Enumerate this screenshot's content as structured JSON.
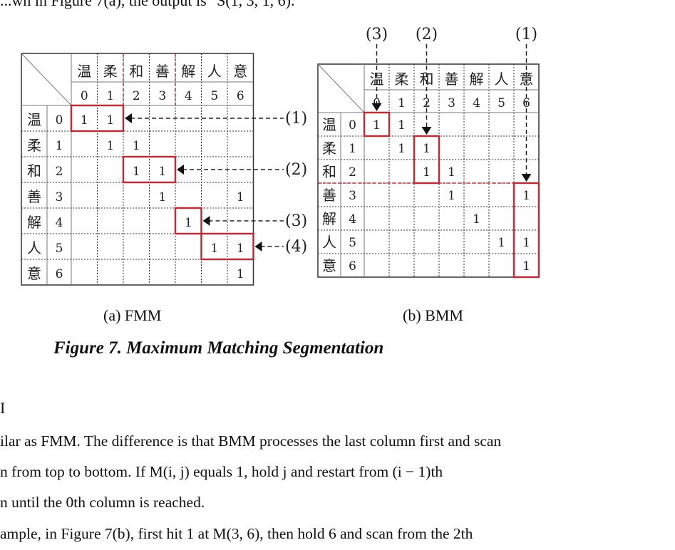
{
  "top_line": "...wn in Figure 7(a), the output is \"S(1, 3, 1, 6).\"",
  "fmm": {
    "caption": "(a) FMM",
    "chars": [
      "温",
      "柔",
      "和",
      "善",
      "解",
      "人",
      "意"
    ],
    "indices": [
      "0",
      "1",
      "2",
      "3",
      "4",
      "5",
      "6"
    ],
    "cells": [
      {
        "r": 0,
        "c": 0,
        "v": "1"
      },
      {
        "r": 0,
        "c": 1,
        "v": "1"
      },
      {
        "r": 1,
        "c": 1,
        "v": "1"
      },
      {
        "r": 1,
        "c": 2,
        "v": "1"
      },
      {
        "r": 2,
        "c": 2,
        "v": "1"
      },
      {
        "r": 2,
        "c": 3,
        "v": "1"
      },
      {
        "r": 3,
        "c": 3,
        "v": "1"
      },
      {
        "r": 3,
        "c": 6,
        "v": "1"
      },
      {
        "r": 4,
        "c": 4,
        "v": "1"
      },
      {
        "r": 5,
        "c": 5,
        "v": "1"
      },
      {
        "r": 5,
        "c": 6,
        "v": "1"
      },
      {
        "r": 6,
        "c": 6,
        "v": "1"
      }
    ],
    "pointers": [
      "(1)",
      "(2)",
      "(3)",
      "(4)"
    ]
  },
  "bmm": {
    "caption": "(b) BMM",
    "chars": [
      "温",
      "柔",
      "和",
      "善",
      "解",
      "人",
      "意"
    ],
    "indices": [
      "0",
      "1",
      "2",
      "3",
      "4",
      "5",
      "6"
    ],
    "cells": [
      {
        "r": 0,
        "c": 0,
        "v": "1"
      },
      {
        "r": 0,
        "c": 1,
        "v": "1"
      },
      {
        "r": 1,
        "c": 1,
        "v": "1"
      },
      {
        "r": 1,
        "c": 2,
        "v": "1"
      },
      {
        "r": 2,
        "c": 2,
        "v": "1"
      },
      {
        "r": 2,
        "c": 3,
        "v": "1"
      },
      {
        "r": 3,
        "c": 3,
        "v": "1"
      },
      {
        "r": 3,
        "c": 6,
        "v": "1"
      },
      {
        "r": 4,
        "c": 4,
        "v": "1"
      },
      {
        "r": 5,
        "c": 5,
        "v": "1"
      },
      {
        "r": 5,
        "c": 6,
        "v": "1"
      },
      {
        "r": 6,
        "c": 6,
        "v": "1"
      }
    ],
    "pointers": [
      "(3)",
      "(2)",
      "(1)"
    ]
  },
  "figure_title": "Figure 7. Maximum Matching Segmentation",
  "section_heading": "I",
  "paragraph_lines": [
    "ilar as FMM. The difference is that BMM processes the last column first and scan",
    "n  from  top  to  bottom.  If  M(i, j)  equals  1,  hold  j  and  restart  from  (i − 1)th",
    "n until the  0th column is reached.",
    "ample, in Figure 7(b), first hit 1 at  M(3, 6), then hold 6 and scan from the  2th"
  ]
}
